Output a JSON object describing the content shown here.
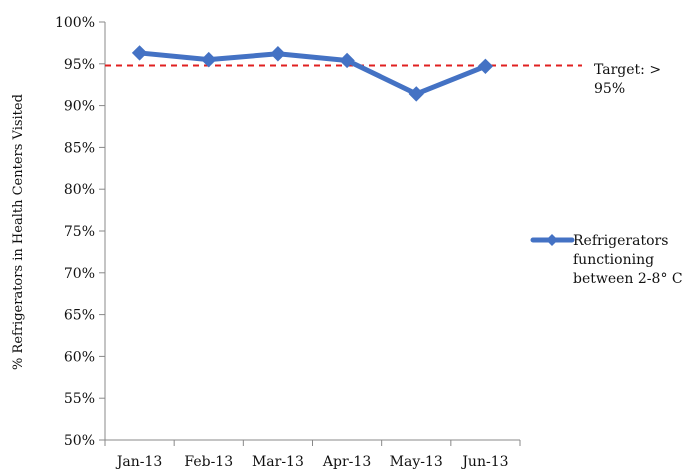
{
  "chart_data": {
    "type": "line",
    "categories": [
      "Jan-13",
      "Feb-13",
      "Mar-13",
      "Apr-13",
      "May-13",
      "Jun-13"
    ],
    "series": [
      {
        "name": "Refrigerators functioning between 2-8° C",
        "values": [
          96.3,
          95.5,
          96.2,
          95.4,
          91.4,
          94.7
        ],
        "color": "#4472c4",
        "marker": "diamond"
      }
    ],
    "ylabel": "% Refrigerators in Health Centers Visited",
    "yticks": [
      "50%",
      "55%",
      "60%",
      "65%",
      "70%",
      "75%",
      "80%",
      "85%",
      "90%",
      "95%",
      "100%"
    ],
    "ylim": [
      50,
      100
    ],
    "ystep": 5,
    "grid": false,
    "legend_position": "right",
    "legend_lines": [
      "Refrigerators",
      "functioning",
      "between 2-8° C"
    ],
    "target": {
      "value": 94.8,
      "lines": [
        "Target: >",
        "95%"
      ],
      "color": "#e02020",
      "style": "dashed"
    }
  }
}
